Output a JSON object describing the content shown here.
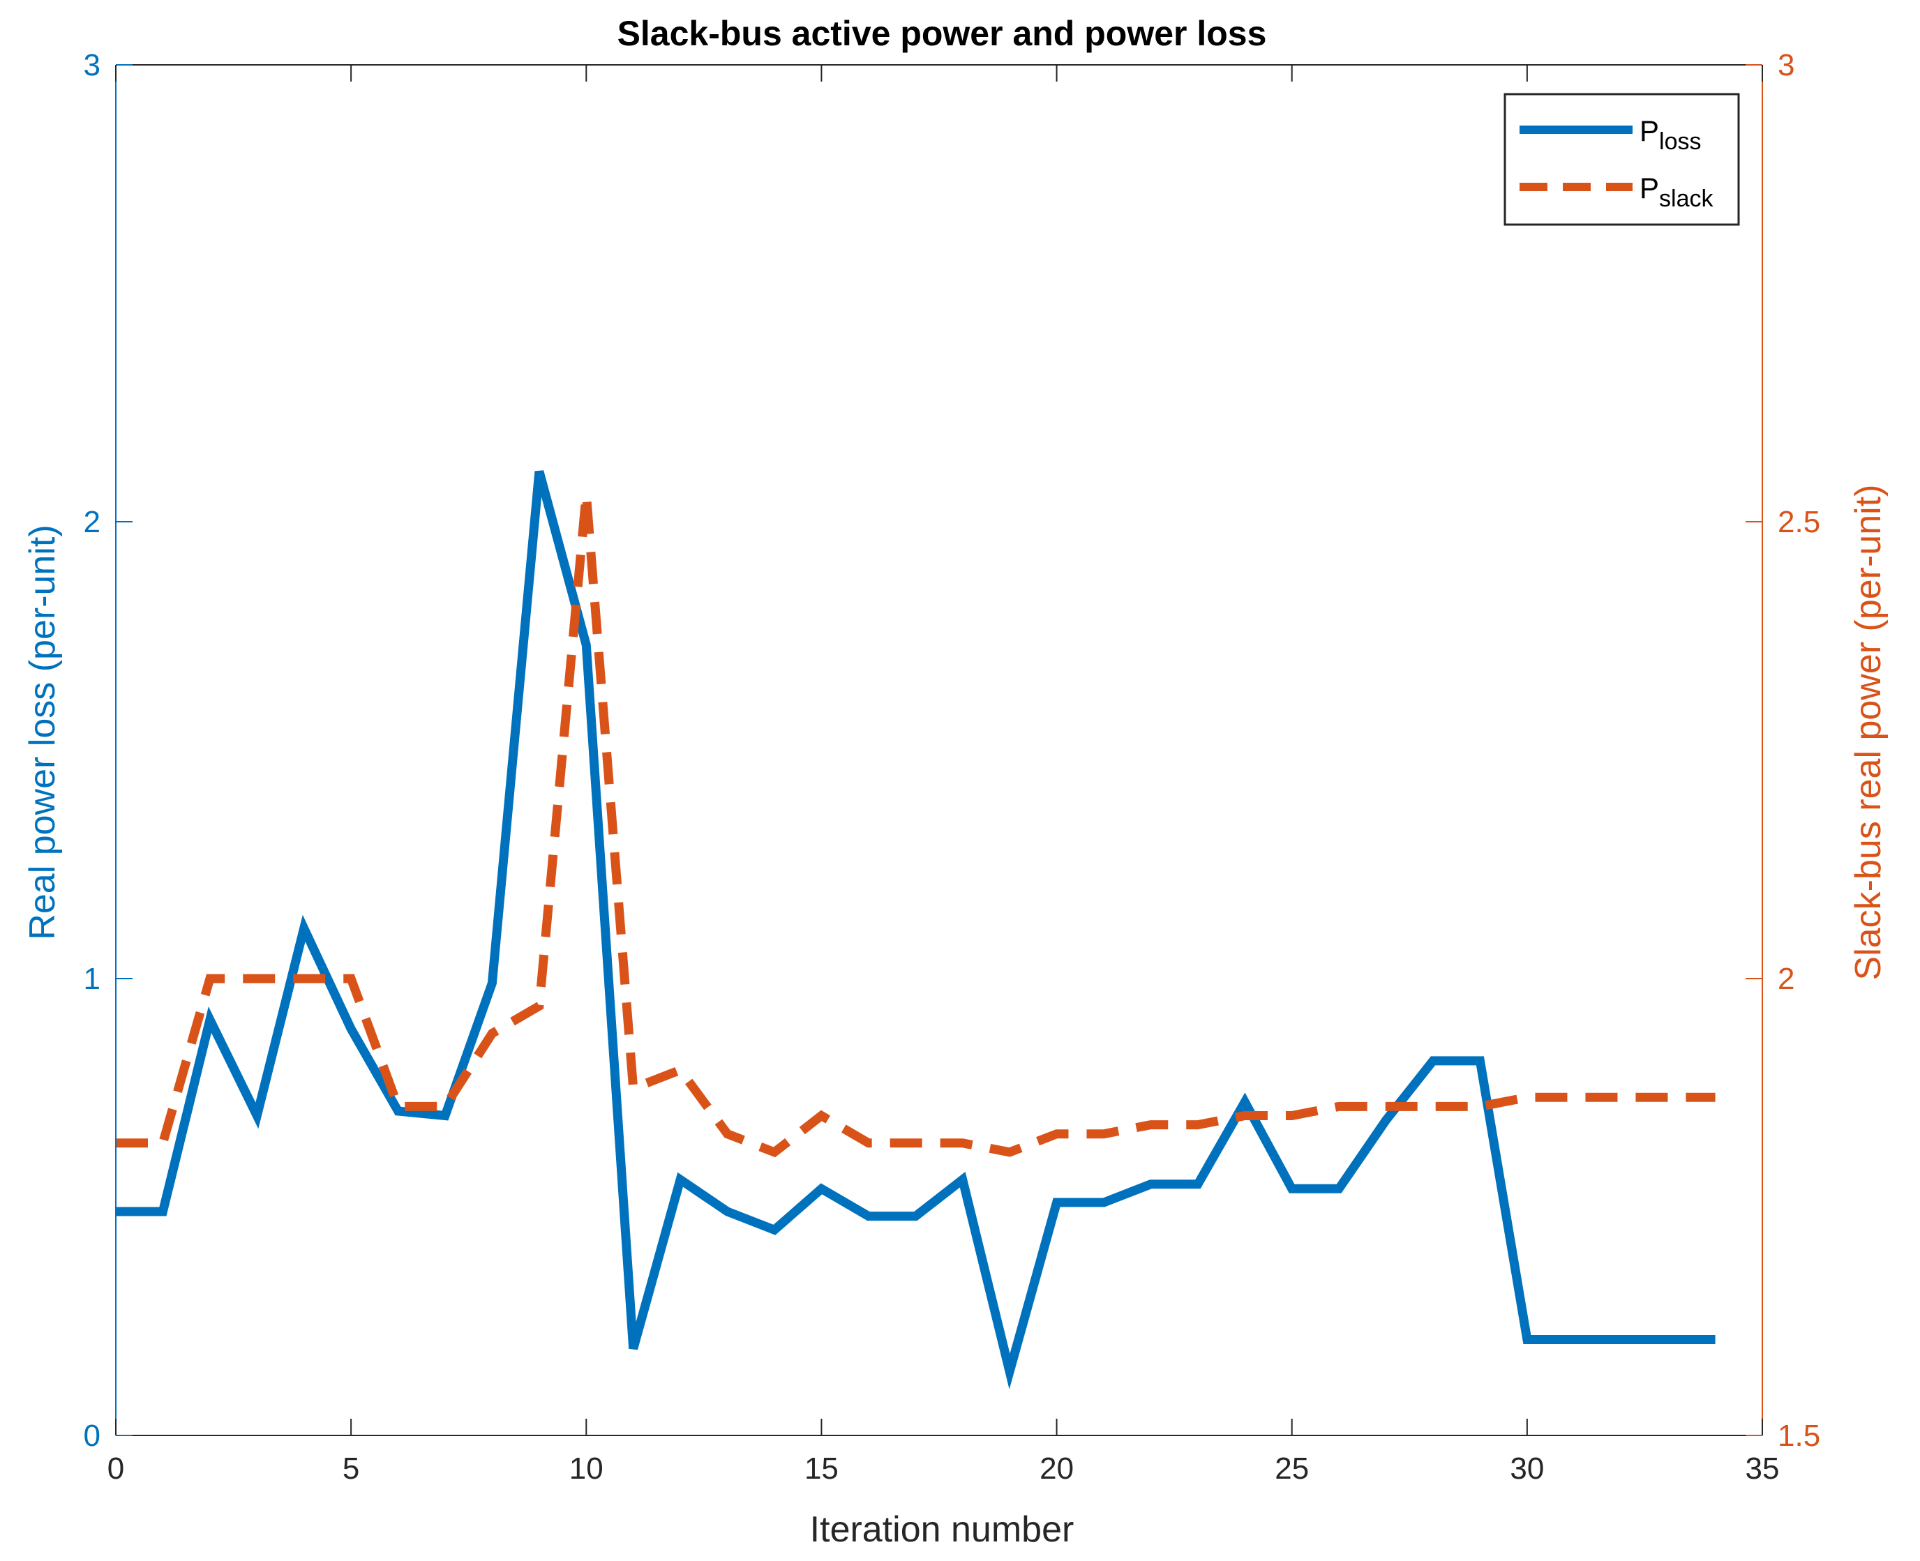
{
  "colors": {
    "left_axis": "#0072BD",
    "right_axis": "#D95319",
    "frame": "#262626",
    "background": "#ffffff"
  },
  "chart_data": {
    "type": "line",
    "title": "Slack-bus active power and power loss",
    "xlabel": "Iteration number",
    "ylabel_left": "Real power loss (per-unit)",
    "ylabel_right": "Slack-bus real power (per-unit)",
    "xlim": [
      0,
      35
    ],
    "ylim_left": [
      0,
      3
    ],
    "ylim_right": [
      1.5,
      3
    ],
    "xticks": [
      0,
      5,
      10,
      15,
      20,
      25,
      30,
      35
    ],
    "yticks_left": [
      "0",
      "1",
      "2",
      "3"
    ],
    "yticks_right": [
      "1.5",
      "2",
      "2.5",
      "3"
    ],
    "grid": false,
    "legend_position": "top-right",
    "series": [
      {
        "name_main": "P",
        "name_sub": "loss",
        "axis": "left",
        "style": "solid",
        "color": "#0072BD",
        "x": [
          0,
          1,
          2,
          3,
          4,
          5,
          6,
          7,
          8,
          9,
          10,
          11,
          12,
          13,
          14,
          15,
          16,
          17,
          18,
          19,
          20,
          21,
          22,
          23,
          24,
          25,
          26,
          27,
          28,
          29,
          30,
          31,
          32,
          33,
          34
        ],
        "y": [
          0.49,
          0.49,
          0.91,
          0.7,
          1.11,
          0.89,
          0.71,
          0.7,
          0.99,
          2.11,
          1.73,
          0.19,
          0.56,
          0.49,
          0.45,
          0.54,
          0.48,
          0.48,
          0.56,
          0.14,
          0.51,
          0.51,
          0.55,
          0.55,
          0.73,
          0.54,
          0.54,
          0.69,
          0.82,
          0.82,
          0.21,
          0.21,
          0.21,
          0.21,
          0.21
        ]
      },
      {
        "name_main": "P",
        "name_sub": "slack",
        "axis": "right",
        "style": "dashed",
        "color": "#D95319",
        "x": [
          0,
          1,
          2,
          3,
          4,
          5,
          6,
          7,
          8,
          9,
          10,
          11,
          12,
          13,
          14,
          15,
          16,
          17,
          18,
          19,
          20,
          21,
          22,
          23,
          24,
          25,
          26,
          27,
          28,
          29,
          30,
          31,
          32,
          33,
          34
        ],
        "y": [
          1.82,
          1.82,
          2.0,
          2.0,
          2.0,
          2.0,
          1.86,
          1.86,
          1.94,
          1.97,
          2.53,
          1.88,
          1.9,
          1.83,
          1.81,
          1.85,
          1.82,
          1.82,
          1.82,
          1.81,
          1.83,
          1.83,
          1.84,
          1.84,
          1.85,
          1.85,
          1.86,
          1.86,
          1.86,
          1.86,
          1.87,
          1.87,
          1.87,
          1.87,
          1.87
        ]
      }
    ]
  }
}
